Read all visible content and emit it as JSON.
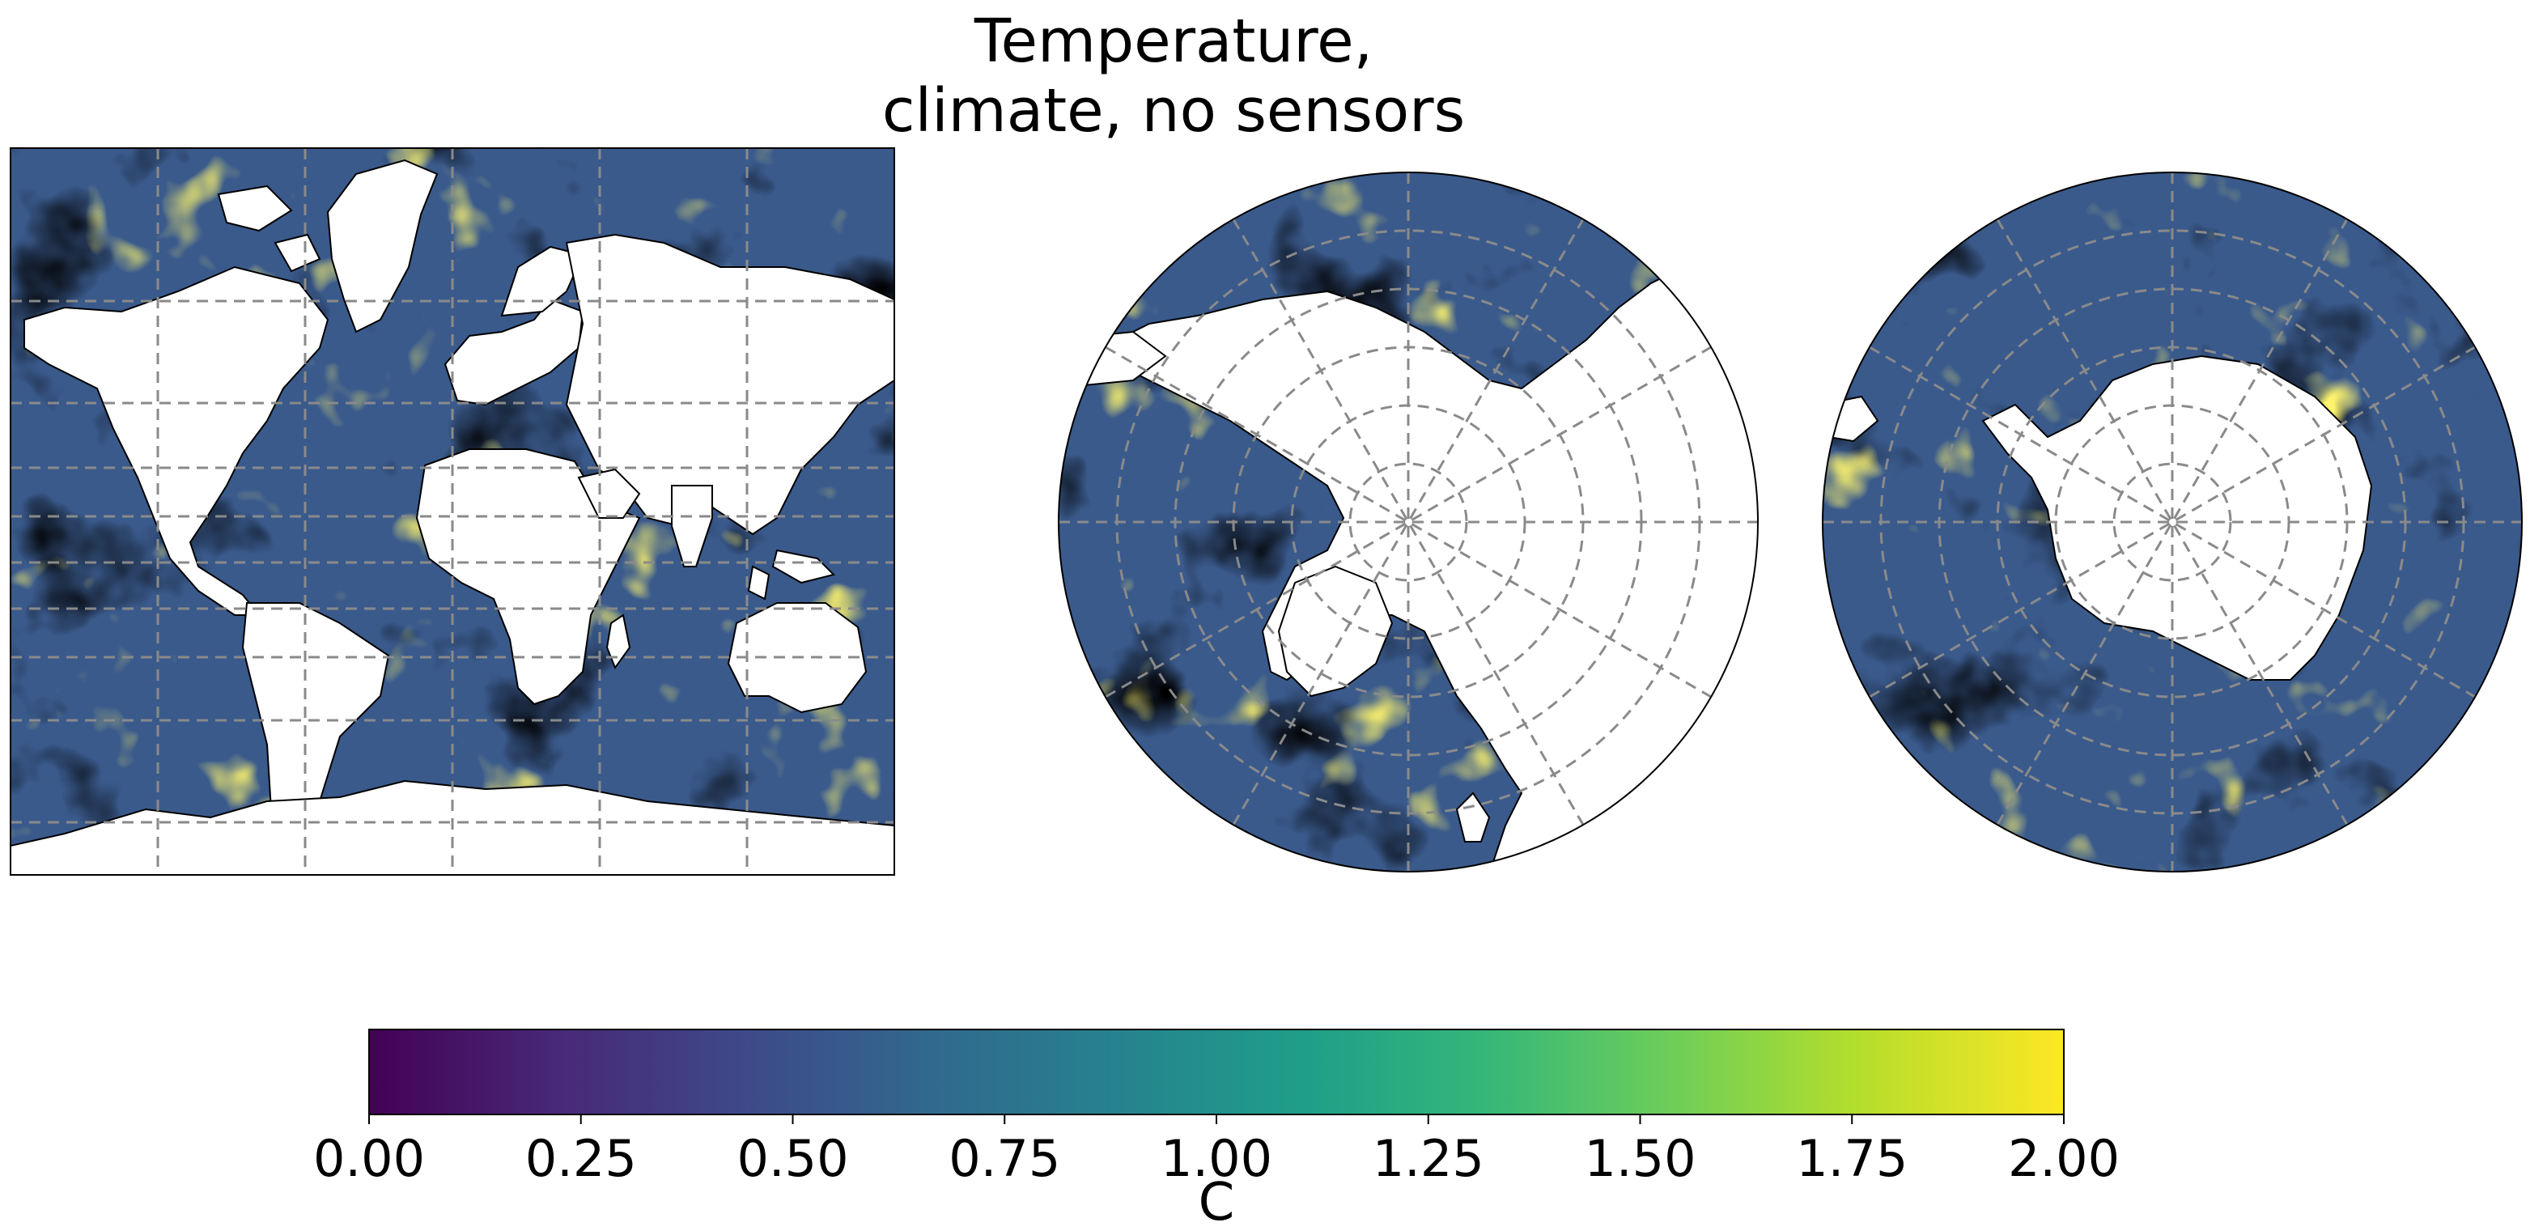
{
  "title": {
    "line1": "Temperature,",
    "line2": "climate, no sensors"
  },
  "panels": [
    {
      "name": "mercator-world-map",
      "projection": "Mercator",
      "region": "Global"
    },
    {
      "name": "north-polar-map",
      "projection": "North Polar Stereographic",
      "region": "Arctic"
    },
    {
      "name": "south-polar-map",
      "projection": "South Polar Stereographic",
      "region": "Antarctic"
    }
  ],
  "colorbar": {
    "colormap": "viridis",
    "min": 0.0,
    "max": 2.0,
    "ticks": [
      "0.00",
      "0.25",
      "0.50",
      "0.75",
      "1.00",
      "1.25",
      "1.50",
      "1.75",
      "2.00"
    ],
    "label": "C",
    "colors": [
      "#440154",
      "#482878",
      "#3e4989",
      "#31688e",
      "#26828e",
      "#1f9e89",
      "#35b779",
      "#6ece58",
      "#b5de2b",
      "#fde725"
    ]
  },
  "style": {
    "land_color": "#ffffff",
    "grid_color": "#8a8a8a",
    "coast_color": "#000000"
  }
}
